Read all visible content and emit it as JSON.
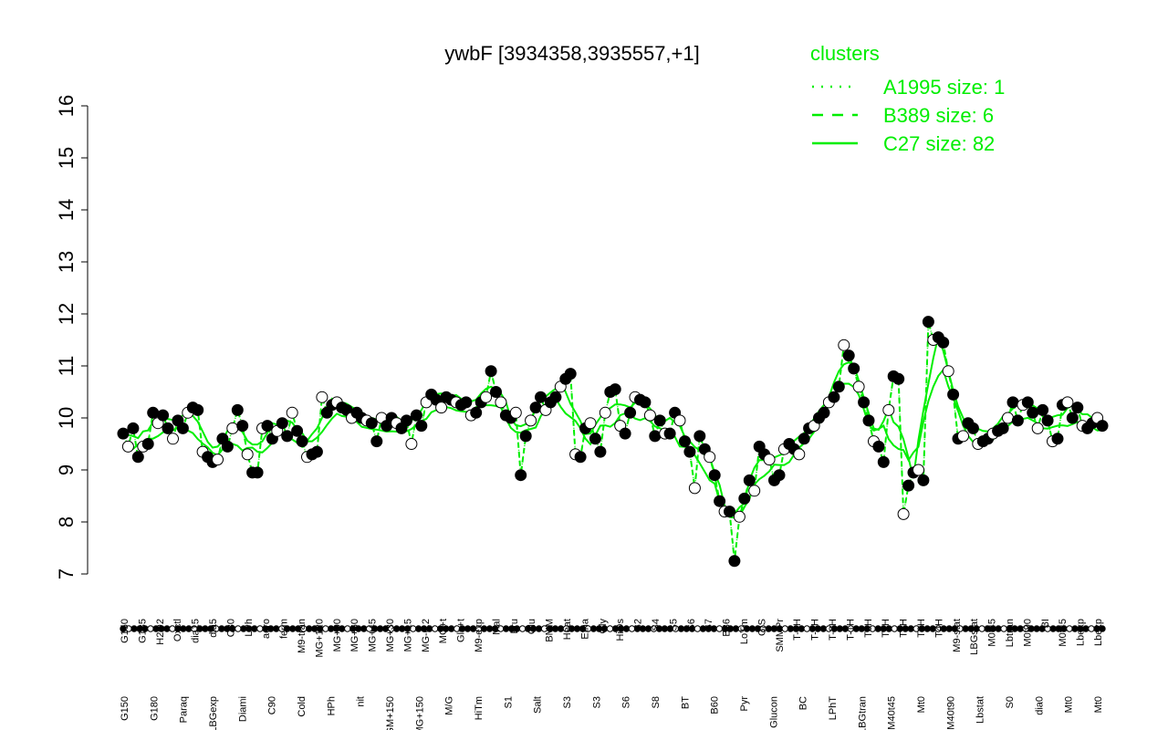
{
  "chart_data": {
    "type": "line",
    "title": "ywbF [3934358,3935557,+1]",
    "xlabel": "",
    "ylabel": "",
    "ylim": [
      7,
      16
    ],
    "yticks": [
      7,
      8,
      9,
      10,
      11,
      12,
      13,
      14,
      15,
      16
    ],
    "legend": {
      "title": "clusters",
      "position": "top-right",
      "entries": [
        {
          "label": "A1995 size: 1",
          "style": "dotted"
        },
        {
          "label": "B389 size: 6",
          "style": "dashed"
        },
        {
          "label": "C27 size: 82",
          "style": "solid"
        }
      ]
    },
    "x_labels_top": [
      "G150",
      "G135",
      "H2O2",
      "Oxctl",
      "dia15",
      "dia5",
      "C30",
      "LPh",
      "aero",
      "ferm",
      "M9-tran",
      "MG+120",
      "MG+90",
      "MG+60",
      "MG+45",
      "MG+30",
      "MG+15",
      "MG-0.2",
      "MG+t",
      "Glc+t",
      "M9-exp",
      "Mal",
      "Fru",
      "Glu",
      "BMM",
      "Heat",
      "Etha",
      "Gly",
      "HiOs",
      "S2",
      "S4",
      "S5",
      "S6",
      "S7",
      "B36",
      "LoTm",
      "G/S",
      "SMMPr",
      "T-4H",
      "T-3H",
      "T-2H",
      "T-1H",
      "T0H",
      "T1H",
      "T2H",
      "T3H",
      "T4H",
      "M9-stat",
      "LBGstat",
      "M0t45",
      "Lbtran",
      "M0t90",
      "BI",
      "M0t45",
      "Lbexp",
      "Lbexp"
    ],
    "x_labels_bottom": [
      "G150",
      "G180",
      "Paraq",
      "LBGexp",
      "Diami",
      "C90",
      "Cold",
      "HPh",
      "nit",
      "GM+150",
      "MG+150",
      "M/G",
      "HiTm",
      "S1",
      "Salt",
      "S3",
      "S3",
      "S6",
      "S8",
      "BT",
      "B60",
      "Pyr",
      "Glucon",
      "BC",
      "LPhT",
      "LBGtran",
      "M40t45",
      "Mt0",
      "M40t90",
      "Lbstat",
      "S0",
      "dia0",
      "Mt0",
      "Mt0"
    ],
    "legend_colors": {
      "cluster_line": "#00ee00",
      "bg": "#ffffff",
      "point_fill": "#000000",
      "point_open": "#ffffff"
    },
    "series": [
      {
        "style": "points",
        "values": [
          9.7,
          9.45,
          9.8,
          9.25,
          9.45,
          9.5,
          10.1,
          9.9,
          10.05,
          9.8,
          9.6,
          9.95,
          9.8,
          10.1,
          10.2,
          10.15,
          9.35,
          9.25,
          9.15,
          9.2,
          9.6,
          9.45,
          9.8,
          10.15,
          9.85,
          9.3,
          8.95,
          8.95,
          9.8,
          9.85,
          9.6,
          9.75,
          9.9,
          9.65,
          10.1,
          9.75,
          9.55,
          9.25,
          9.3,
          9.35,
          10.4,
          10.1,
          10.25,
          10.3,
          10.2,
          10.15,
          10.0,
          10.1,
          10.0,
          9.95,
          9.9,
          9.55,
          10.0,
          9.85,
          10.0,
          9.9,
          9.8,
          9.95,
          9.5,
          10.05,
          9.85,
          10.3,
          10.45,
          10.35,
          10.2,
          10.4,
          10.35,
          10.3,
          10.25,
          10.3,
          10.05,
          10.1,
          10.3,
          10.4,
          10.9,
          10.5,
          10.3,
          10.05,
          10.0,
          10.1,
          8.9,
          9.65,
          9.95,
          10.2,
          10.4,
          10.15,
          10.3,
          10.4,
          10.6,
          10.75,
          10.85,
          9.3,
          9.25,
          9.8,
          9.9,
          9.6,
          9.35,
          10.1,
          10.5,
          10.55,
          9.85,
          9.7,
          10.1,
          10.4,
          10.35,
          10.3,
          10.05,
          9.65,
          9.95,
          9.7,
          9.7,
          10.1,
          9.95,
          9.55,
          9.35,
          8.65,
          9.65,
          9.4,
          9.25,
          8.9,
          8.4,
          8.2,
          8.2,
          7.25,
          8.1,
          8.45,
          8.8,
          8.6,
          9.45,
          9.3,
          9.2,
          8.8,
          8.9,
          9.4,
          9.5,
          9.4,
          9.3,
          9.6,
          9.8,
          9.85,
          10.0,
          10.1,
          10.3,
          10.4,
          10.6,
          11.4,
          11.2,
          10.95,
          10.6,
          10.3,
          9.95,
          9.55,
          9.45,
          9.15,
          10.15,
          10.8,
          10.75,
          8.15,
          8.7,
          8.95,
          9.0,
          8.8,
          11.85,
          11.5,
          11.55,
          11.45,
          10.9,
          10.45,
          9.6,
          9.65,
          9.9,
          9.8,
          9.5,
          9.55,
          9.6,
          9.7,
          9.75,
          9.8,
          10.0,
          10.3,
          9.95,
          10.25,
          10.3,
          10.1,
          9.8,
          10.15,
          9.95,
          9.55,
          9.6,
          10.25,
          10.3,
          10.0,
          10.2,
          9.85,
          9.8,
          9.9,
          10.0,
          9.85
        ]
      }
    ]
  }
}
